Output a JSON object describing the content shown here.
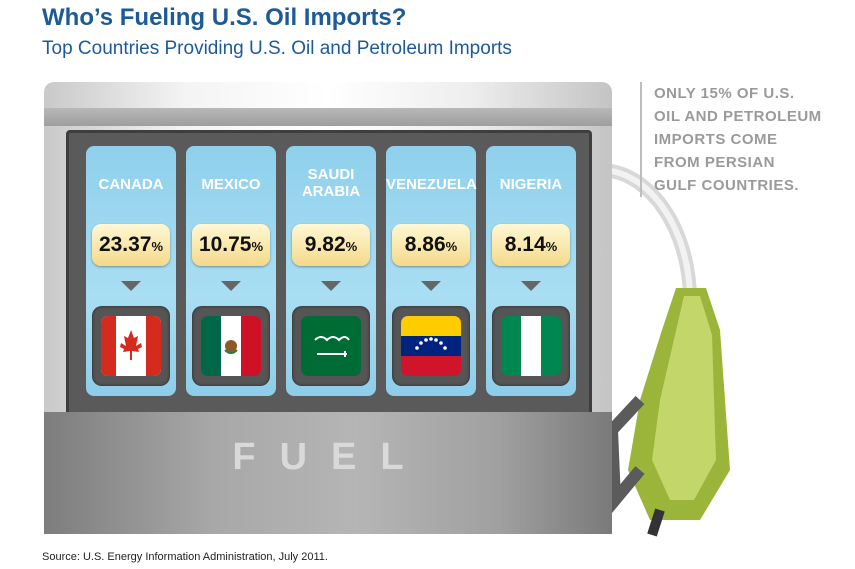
{
  "title": "Who’s Fueling U.S. Oil Imports?",
  "subtitle": "Top Countries Providing U.S. Oil and Petroleum Imports",
  "note_lines": [
    "ONLY 15% OF U.S.",
    "OIL AND PETROLEUM",
    "IMPORTS COME",
    "FROM PERSIAN",
    "GULF COUNTRIES."
  ],
  "pump_label": "FUEL",
  "source": "Source: U.S. Energy Information Administration, July 2011.",
  "pct_symbol": "%",
  "chart_data": {
    "type": "table",
    "categories": [
      "CANADA",
      "MEXICO",
      "SAUDI ARABIA",
      "VENEZUELA",
      "NIGERIA"
    ],
    "values": [
      "23.37",
      "10.75",
      "9.82",
      "8.86",
      "8.14"
    ],
    "unit": "%"
  },
  "colors": {
    "title": "#1c5a99",
    "panel": "#a9def3",
    "value_box": "#f4d98a",
    "nozzle": "#9bb43a"
  },
  "flags": [
    "canada-flag",
    "mexico-flag",
    "saudi-arabia-flag",
    "venezuela-flag",
    "nigeria-flag"
  ]
}
